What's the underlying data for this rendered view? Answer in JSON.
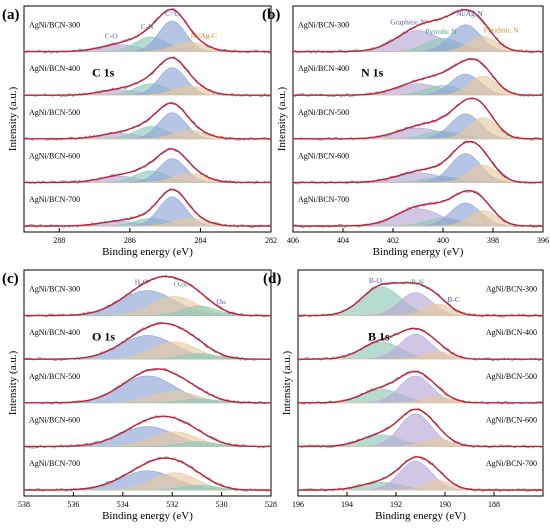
{
  "figure": {
    "y_axis_label": "Intensity (a.u.)",
    "x_axis_label": "Binding energy (eV)"
  },
  "chart_data": [
    {
      "panel": "(a)",
      "type": "line",
      "element_label": "C 1s",
      "xlabel": "Binding energy (eV)",
      "ylabel": "Intensity (a.u.)",
      "xlim": [
        289,
        282
      ],
      "x_ticks": [
        288,
        286,
        284,
        282
      ],
      "x_reversed": true,
      "y_ticks_shown": false,
      "samples": [
        "AgNi/BCN-300",
        "AgNi/BCN-400",
        "AgNi/BCN-500",
        "AgNi/BCN-600",
        "AgNi/BCN-700"
      ],
      "peak_labels": [
        "C-O",
        "C-N",
        "C=C",
        "Ni/Ag-C"
      ],
      "components": [
        {
          "name": "C-O",
          "center": 286.3,
          "width": 0.55,
          "color": "#b9a8d6",
          "heights": [
            0.18,
            0.14,
            0.14,
            0.16,
            0.12
          ]
        },
        {
          "name": "C-N",
          "center": 285.4,
          "width": 0.45,
          "color": "#8fc9b8",
          "heights": [
            0.38,
            0.3,
            0.32,
            0.3,
            0.2
          ]
        },
        {
          "name": "C=C",
          "center": 284.8,
          "width": 0.38,
          "color": "#8fa4d8",
          "heights": [
            0.8,
            0.72,
            0.68,
            0.62,
            0.76
          ]
        },
        {
          "name": "Ni/Ag-C",
          "center": 284.3,
          "width": 0.45,
          "color": "#e8c9a0",
          "heights": [
            0.25,
            0.24,
            0.22,
            0.23,
            0.2
          ]
        }
      ]
    },
    {
      "panel": "(b)",
      "type": "line",
      "element_label": "N 1s",
      "xlabel": "Binding energy (eV)",
      "ylabel": "Intensity (a.u.)",
      "xlim": [
        406,
        396
      ],
      "x_ticks": [
        406,
        404,
        402,
        400,
        398,
        396
      ],
      "x_reversed": true,
      "y_ticks_shown": false,
      "samples": [
        "AgNi/BCN-300",
        "AgNi/BCN-400",
        "AgNi/BCN-500",
        "AgNi/BCN-600",
        "AgNi/BCN-700"
      ],
      "peak_labels": [
        "Graphitic N",
        "Pyrrolic N",
        "Ni/Ag-N",
        "Pyridinic N"
      ],
      "components": [
        {
          "name": "Graphitic N",
          "center": 401.0,
          "width": 0.9,
          "color": "#b9a8d6",
          "heights": [
            0.55,
            0.3,
            0.28,
            0.25,
            0.45
          ]
        },
        {
          "name": "Pyrrolic N",
          "center": 400.0,
          "width": 0.7,
          "color": "#8fc9b8",
          "heights": [
            0.35,
            0.25,
            0.2,
            0.15,
            0.2
          ]
        },
        {
          "name": "Ni/Ag-N",
          "center": 399.1,
          "width": 0.6,
          "color": "#8fa4d8",
          "heights": [
            0.7,
            0.55,
            0.65,
            0.75,
            0.6
          ]
        },
        {
          "name": "Pyridinic N",
          "center": 398.4,
          "width": 0.55,
          "color": "#e8c9a0",
          "heights": [
            0.4,
            0.5,
            0.55,
            0.45,
            0.4
          ]
        }
      ]
    },
    {
      "panel": "(c)",
      "type": "line",
      "element_label": "O 1s",
      "xlabel": "Binding energy (eV)",
      "ylabel": "Intensity (a.u.)",
      "xlim": [
        538,
        528
      ],
      "x_ticks": [
        538,
        536,
        534,
        532,
        530,
        528
      ],
      "x_reversed": true,
      "y_ticks_shown": false,
      "samples": [
        "AgNi/BCN-300",
        "AgNi/BCN-400",
        "AgNi/BCN-500",
        "AgNi/BCN-600",
        "AgNi/BCN-700"
      ],
      "peak_labels": [
        "H2O",
        "Oads",
        "OM"
      ],
      "components": [
        {
          "name": "H2O",
          "center": 533.0,
          "width": 1.1,
          "color": "#8fa4d8",
          "heights": [
            0.65,
            0.62,
            0.7,
            0.52,
            0.5
          ]
        },
        {
          "name": "Oads",
          "center": 531.9,
          "width": 0.9,
          "color": "#e8c9a0",
          "heights": [
            0.5,
            0.45,
            0.3,
            0.38,
            0.45
          ]
        },
        {
          "name": "OM",
          "center": 530.9,
          "width": 0.7,
          "color": "#8fc9b8",
          "heights": [
            0.25,
            0.15,
            0.1,
            0.12,
            0.12
          ]
        }
      ]
    },
    {
      "panel": "(d)",
      "type": "line",
      "element_label": "B 1s",
      "xlabel": "Binding energy (eV)",
      "ylabel": "Intensity (a.u.)",
      "xlim": [
        196,
        186
      ],
      "x_ticks": [
        196,
        194,
        192,
        190,
        188
      ],
      "x_reversed": true,
      "y_ticks_shown": false,
      "samples": [
        "AgNi/BCN-300",
        "AgNi/BCN-400",
        "AgNi/BCN-500",
        "AgNi/BCN-600",
        "AgNi/BCN-700"
      ],
      "peak_labels": [
        "B-O",
        "B-N",
        "B-C"
      ],
      "components": [
        {
          "name": "B-O",
          "center": 192.6,
          "width": 0.8,
          "color": "#8fc9b8",
          "heights": [
            0.75,
            0.45,
            0.35,
            0.3,
            0.2
          ]
        },
        {
          "name": "B-N",
          "center": 191.2,
          "width": 0.65,
          "color": "#b9a8d6",
          "heights": [
            0.6,
            0.65,
            0.7,
            0.85,
            0.75
          ]
        },
        {
          "name": "B-C",
          "center": 190.3,
          "width": 0.55,
          "color": "#e8c9a0",
          "heights": [
            0.3,
            0.2,
            0.15,
            0.2,
            0.25
          ]
        }
      ]
    }
  ]
}
